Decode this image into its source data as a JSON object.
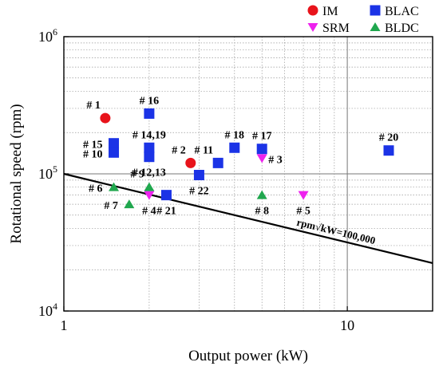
{
  "chart_data": {
    "type": "scatter",
    "x_scale": "log",
    "y_scale": "log",
    "xlabel": "Output power (kW)",
    "ylabel": "Rotational speed (rpm)",
    "xlim": [
      1,
      20
    ],
    "ylim": [
      10000,
      1000000
    ],
    "grid": true,
    "x_ticks": [
      {
        "value": 1,
        "label": "1"
      },
      {
        "value": 10,
        "label": "10"
      }
    ],
    "y_ticks": [
      {
        "value": 10000,
        "base": "10",
        "exp": "4"
      },
      {
        "value": 100000,
        "base": "10",
        "exp": "5"
      },
      {
        "value": 1000000,
        "base": "10",
        "exp": "6"
      }
    ],
    "legend": {
      "placement": "top-right",
      "entries": [
        {
          "series": "IM",
          "label": "IM"
        },
        {
          "series": "BLAC",
          "label": "BLAC"
        },
        {
          "series": "SRM",
          "label": "SRM"
        },
        {
          "series": "BLDC",
          "label": "BLDC"
        }
      ]
    },
    "series": [
      {
        "name": "IM",
        "marker": "circle",
        "color": "#e8131b",
        "points": [
          {
            "x": 1.4,
            "y": 255000
          },
          {
            "x": 2.8,
            "y": 120000
          }
        ]
      },
      {
        "name": "BLAC",
        "marker": "square",
        "color": "#1b33e6",
        "points": [
          {
            "x": 1.5,
            "y": 167000
          },
          {
            "x": 1.5,
            "y": 143000
          },
          {
            "x": 2.0,
            "y": 275000
          },
          {
            "x": 2.0,
            "y": 155000
          },
          {
            "x": 2.0,
            "y": 133000
          },
          {
            "x": 2.3,
            "y": 70000
          },
          {
            "x": 3.0,
            "y": 98000
          },
          {
            "x": 3.5,
            "y": 120000
          },
          {
            "x": 4.0,
            "y": 155000
          },
          {
            "x": 5.0,
            "y": 152000
          },
          {
            "x": 14.0,
            "y": 148000
          }
        ]
      },
      {
        "name": "SRM",
        "marker": "triangle-down",
        "color": "#ee22ee",
        "points": [
          {
            "x": 2.0,
            "y": 70000
          },
          {
            "x": 5.0,
            "y": 130000
          },
          {
            "x": 7.0,
            "y": 70000
          }
        ]
      },
      {
        "name": "BLDC",
        "marker": "triangle-up",
        "color": "#20a74e",
        "points": [
          {
            "x": 1.5,
            "y": 80000
          },
          {
            "x": 1.7,
            "y": 60000
          },
          {
            "x": 2.0,
            "y": 80000
          },
          {
            "x": 5.0,
            "y": 70000
          }
        ]
      }
    ],
    "reference_line": {
      "label": "rpm√kW=100,000",
      "constant": 100000,
      "x_start": 1,
      "x_end": 20
    },
    "point_labels": [
      {
        "text": "# 1",
        "x": 1.4,
        "y": 255000,
        "anchor": "above-left"
      },
      {
        "text": "# 16",
        "x": 2.0,
        "y": 275000,
        "anchor": "above"
      },
      {
        "text": "# 14,19",
        "x": 2.0,
        "y": 155000,
        "anchor": "above"
      },
      {
        "text": "# 15",
        "x": 1.5,
        "y": 167000,
        "anchor": "left"
      },
      {
        "text": "# 10",
        "x": 1.5,
        "y": 143000,
        "anchor": "left"
      },
      {
        "text": "# 12,13",
        "x": 2.0,
        "y": 133000,
        "anchor": "below"
      },
      {
        "text": "# 2",
        "x": 2.8,
        "y": 120000,
        "anchor": "above-left"
      },
      {
        "text": "# 11",
        "x": 3.5,
        "y": 120000,
        "anchor": "above-left"
      },
      {
        "text": "# 18",
        "x": 4.0,
        "y": 155000,
        "anchor": "above"
      },
      {
        "text": "# 17",
        "x": 5.0,
        "y": 152000,
        "anchor": "above"
      },
      {
        "text": "# 3",
        "x": 5.0,
        "y": 130000,
        "anchor": "right"
      },
      {
        "text": "# 20",
        "x": 14.0,
        "y": 148000,
        "anchor": "above"
      },
      {
        "text": "# 6",
        "x": 1.5,
        "y": 80000,
        "anchor": "left"
      },
      {
        "text": "# 9",
        "x": 2.0,
        "y": 80000,
        "anchor": "above-left"
      },
      {
        "text": "# 7",
        "x": 1.7,
        "y": 60000,
        "anchor": "left"
      },
      {
        "text": "# 4",
        "x": 2.0,
        "y": 70000,
        "anchor": "below"
      },
      {
        "text": "# 21",
        "x": 2.3,
        "y": 70000,
        "anchor": "below"
      },
      {
        "text": "# 22",
        "x": 3.0,
        "y": 98000,
        "anchor": "below"
      },
      {
        "text": "# 8",
        "x": 5.0,
        "y": 70000,
        "anchor": "below"
      },
      {
        "text": "# 5",
        "x": 7.0,
        "y": 70000,
        "anchor": "below"
      }
    ]
  }
}
